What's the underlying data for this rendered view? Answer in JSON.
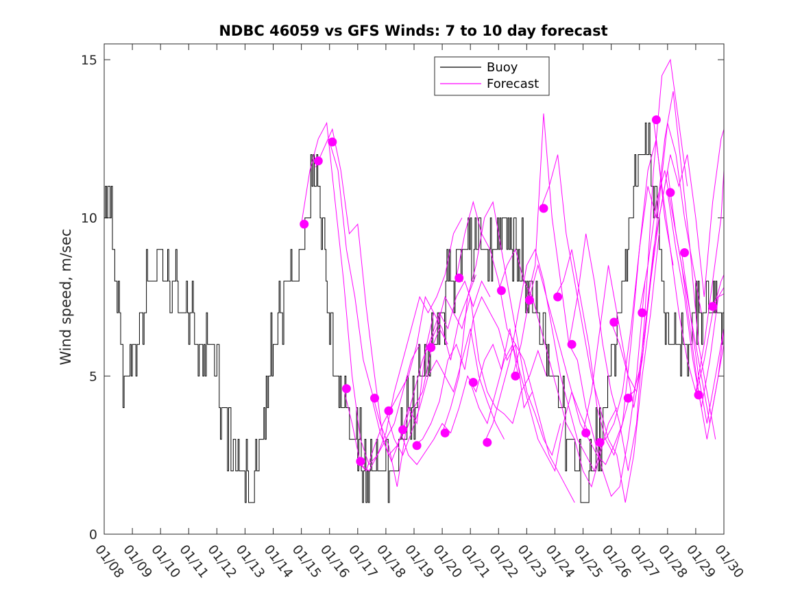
{
  "chart_data": {
    "type": "line",
    "title": "NDBC 46059 vs GFS Winds: 7 to 10 day forecast",
    "xlabel": "",
    "ylabel": "Wind speed, m/sec",
    "xlim": [
      0,
      22
    ],
    "ylim": [
      0,
      15.5
    ],
    "yticks": [
      0,
      5,
      10,
      15
    ],
    "xtick_labels": [
      "01/08",
      "01/09",
      "01/10",
      "01/11",
      "01/12",
      "01/13",
      "01/14",
      "01/15",
      "01/16",
      "01/17",
      "01/18",
      "01/19",
      "01/20",
      "01/21",
      "01/22",
      "01/23",
      "01/24",
      "01/25",
      "01/26",
      "01/27",
      "01/28",
      "01/29",
      "01/30"
    ],
    "legend": {
      "position": "top-center",
      "entries": [
        "Buoy",
        "Forecast"
      ]
    },
    "colors": {
      "buoy": "#000000",
      "forecast": "#ff00ff",
      "marker": "#ff00ff",
      "axes": "#262626"
    },
    "series": [
      {
        "name": "Buoy",
        "style": "step-hourly",
        "x": [
          0,
          0.15,
          0.3,
          0.5,
          0.7,
          0.9,
          1.1,
          1.3,
          1.6,
          1.9,
          2.2,
          2.5,
          2.8,
          3.1,
          3.5,
          3.8,
          4.0,
          4.2,
          4.5,
          4.8,
          5.0,
          5.2,
          5.4,
          5.6,
          5.8,
          6.0,
          6.2,
          6.5,
          6.8,
          7.0,
          7.2,
          7.4,
          7.6,
          7.8,
          8.0,
          8.2,
          8.4,
          8.6,
          8.8,
          9.0,
          9.2,
          9.5,
          9.8,
          10.0,
          10.3,
          10.6,
          10.9,
          11.2,
          11.5,
          11.8,
          12.0,
          12.3,
          12.6,
          12.9,
          13.2,
          13.5,
          13.8,
          14.1,
          14.4,
          14.7,
          15.0,
          15.3,
          15.6,
          15.9,
          16.2,
          16.5,
          16.8,
          17.0,
          17.3,
          17.6,
          17.9,
          18.1,
          18.4,
          18.7,
          19.0,
          19.3,
          19.6,
          19.9,
          20.1,
          20.4,
          20.7,
          21.0,
          21.3,
          21.6,
          21.9
        ],
        "y": [
          11,
          11,
          9,
          7,
          5,
          5,
          6,
          7,
          8,
          9,
          8,
          8,
          7,
          7,
          6,
          6,
          5,
          4,
          3,
          2,
          2,
          1,
          2,
          3,
          5,
          6,
          7,
          8,
          8,
          9,
          10,
          11,
          11,
          10,
          6,
          5,
          4,
          4,
          3,
          3,
          2,
          2,
          2,
          2,
          2,
          3,
          4,
          5,
          6,
          6,
          7,
          8,
          9,
          9,
          9,
          9,
          9,
          10,
          9,
          9,
          8,
          7,
          6,
          5,
          4,
          3,
          2,
          1,
          2,
          3,
          5,
          6,
          8,
          10,
          12,
          13,
          10,
          7,
          6,
          6,
          6,
          7,
          7,
          7,
          7
        ]
      },
      {
        "name": "Forecast",
        "x": [
          7.0,
          7.3,
          7.6,
          7.9,
          8.2,
          8.5,
          8.8,
          9.1,
          9.4,
          9.7,
          10.0,
          10.3,
          10.6,
          10.9,
          11.2
        ],
        "y": [
          9.8,
          11.5,
          12.5,
          13.0,
          10.5,
          8.0,
          5.0,
          3.0,
          2.2,
          2.5,
          3.0,
          3.5,
          4.5,
          5.5,
          6.0
        ]
      },
      {
        "name": "Forecast",
        "x": [
          7.5,
          7.8,
          8.1,
          8.4,
          8.7,
          9.0,
          9.3,
          9.6,
          9.9,
          10.2,
          10.5,
          10.8,
          11.1,
          11.4,
          11.7
        ],
        "y": [
          11.6,
          12.2,
          12.8,
          11.5,
          9.5,
          9.8,
          7.2,
          5.0,
          3.0,
          2.3,
          3.0,
          4.0,
          3.5,
          5.8,
          7.0
        ]
      },
      {
        "name": "Forecast",
        "x": [
          8.0,
          8.3,
          8.6,
          8.9,
          9.2,
          9.5,
          9.8,
          10.1,
          10.4,
          10.7,
          11.0,
          11.3,
          11.6,
          11.9,
          12.2
        ],
        "y": [
          12.4,
          11.5,
          9.0,
          7.5,
          5.5,
          4.5,
          3.5,
          2.8,
          1.5,
          3.2,
          4.0,
          4.5,
          5.8,
          6.5,
          6.0
        ]
      },
      {
        "name": "Forecast",
        "x": [
          8.5,
          8.8,
          9.1,
          9.4,
          9.7,
          10.0,
          10.3,
          10.6,
          10.9,
          11.2,
          11.5,
          11.8,
          12.1,
          12.4,
          12.7
        ],
        "y": [
          4.6,
          3.5,
          2.2,
          2.0,
          2.5,
          3.2,
          4.5,
          5.5,
          6.5,
          7.5,
          7.0,
          7.5,
          8.2,
          9.5,
          10.0
        ]
      },
      {
        "name": "Forecast",
        "x": [
          9.0,
          9.3,
          9.6,
          9.9,
          10.2,
          10.5,
          10.8,
          11.1,
          11.4,
          11.7,
          12.0,
          12.3,
          12.6,
          12.9,
          13.2
        ],
        "y": [
          2.3,
          2.0,
          2.8,
          3.5,
          4.0,
          4.5,
          5.0,
          6.0,
          7.5,
          7.0,
          6.5,
          5.5,
          6.8,
          7.5,
          8.2
        ]
      },
      {
        "name": "Forecast",
        "x": [
          9.5,
          9.8,
          10.1,
          10.4,
          10.7,
          11.0,
          11.3,
          11.6,
          11.9,
          12.2,
          12.5,
          12.8,
          13.1,
          13.4,
          13.7
        ],
        "y": [
          4.3,
          3.2,
          2.5,
          2.8,
          3.5,
          4.5,
          5.5,
          6.2,
          7.0,
          6.5,
          7.5,
          8.0,
          7.2,
          8.0,
          7.5
        ]
      },
      {
        "name": "Forecast",
        "x": [
          10.0,
          10.3,
          10.6,
          10.9,
          11.2,
          11.5,
          11.8,
          12.1,
          12.4,
          12.7,
          13.0,
          13.3,
          13.6,
          13.9,
          14.2
        ],
        "y": [
          3.9,
          3.0,
          2.5,
          3.2,
          4.0,
          5.0,
          5.5,
          5.0,
          4.5,
          5.5,
          6.5,
          5.0,
          4.2,
          3.5,
          3.0
        ]
      },
      {
        "name": "Forecast",
        "x": [
          10.5,
          10.8,
          11.1,
          11.4,
          11.7,
          12.0,
          12.3,
          12.6,
          12.9,
          13.2,
          13.5,
          13.8,
          14.1,
          14.4,
          14.7
        ],
        "y": [
          3.3,
          2.5,
          2.2,
          2.6,
          3.0,
          3.5,
          3.2,
          4.0,
          5.0,
          4.5,
          5.5,
          6.0,
          5.2,
          6.5,
          5.0
        ]
      },
      {
        "name": "Forecast",
        "x": [
          11.0,
          11.3,
          11.6,
          11.9,
          12.2,
          12.5,
          12.8,
          13.1,
          13.4,
          13.7,
          14.0,
          14.3,
          14.6,
          14.9,
          15.2
        ],
        "y": [
          2.8,
          3.0,
          3.5,
          4.2,
          5.5,
          6.0,
          5.2,
          6.8,
          7.5,
          7.0,
          6.5,
          5.5,
          6.0,
          4.0,
          4.5
        ]
      },
      {
        "name": "Forecast",
        "x": [
          11.5,
          11.8,
          12.1,
          12.4,
          12.7,
          13.0,
          13.3,
          13.6,
          13.9,
          14.2,
          14.5,
          14.8,
          15.1,
          15.4,
          15.7
        ],
        "y": [
          5.9,
          6.5,
          7.5,
          7.0,
          6.5,
          7.5,
          5.5,
          4.5,
          4.0,
          3.8,
          3.5,
          4.5,
          5.0,
          5.8,
          5.0
        ]
      },
      {
        "name": "Forecast",
        "x": [
          12.0,
          12.3,
          12.6,
          12.9,
          13.2,
          13.5,
          13.8,
          14.1,
          14.4,
          14.7,
          15.0,
          15.3,
          15.6,
          15.9,
          16.2
        ],
        "y": [
          3.2,
          4.0,
          5.0,
          7.5,
          8.5,
          10.0,
          10.5,
          9.0,
          7.5,
          6.0,
          4.5,
          3.8,
          3.0,
          2.5,
          3.5
        ]
      },
      {
        "name": "Forecast",
        "x": [
          12.5,
          12.8,
          13.1,
          13.4,
          13.7,
          14.0,
          14.3,
          14.6,
          14.9,
          15.2,
          15.5,
          15.8,
          16.1,
          16.4,
          16.7
        ],
        "y": [
          8.1,
          9.5,
          10.5,
          9.5,
          9.0,
          8.0,
          6.5,
          6.0,
          5.5,
          4.5,
          3.5,
          2.5,
          2.0,
          1.5,
          1.0
        ]
      },
      {
        "name": "Forecast",
        "x": [
          13.0,
          13.3,
          13.6,
          13.9,
          14.2,
          14.5,
          14.8,
          15.1,
          15.4,
          15.7,
          16.0,
          16.3,
          16.6,
          16.9,
          17.2
        ],
        "y": [
          4.8,
          4.0,
          3.5,
          4.5,
          5.5,
          6.0,
          5.0,
          4.0,
          3.0,
          2.5,
          2.0,
          3.5,
          4.5,
          3.8,
          3.2
        ]
      },
      {
        "name": "Forecast",
        "x": [
          13.5,
          13.8,
          14.1,
          14.4,
          14.7,
          15.0,
          15.3,
          15.6,
          15.9,
          16.2,
          16.5,
          16.8,
          17.1,
          17.4,
          17.7
        ],
        "y": [
          2.9,
          3.5,
          4.5,
          5.5,
          7.0,
          8.5,
          9.0,
          8.0,
          6.5,
          5.0,
          4.0,
          3.0,
          2.5,
          2.0,
          3.0
        ]
      },
      {
        "name": "Forecast",
        "x": [
          14.0,
          14.3,
          14.6,
          14.9,
          15.2,
          15.5,
          15.8,
          16.1,
          16.4,
          16.7,
          17.0,
          17.3,
          17.6,
          17.9,
          18.2
        ],
        "y": [
          7.7,
          8.5,
          9.0,
          8.0,
          7.5,
          6.5,
          5.5,
          4.5,
          3.5,
          3.0,
          2.0,
          1.5,
          2.5,
          3.5,
          4.0
        ]
      },
      {
        "name": "Forecast",
        "x": [
          14.5,
          14.8,
          15.1,
          15.4,
          15.7,
          16.0,
          16.3,
          16.6,
          16.9,
          17.2,
          17.5,
          17.8,
          18.1,
          18.4,
          18.7
        ],
        "y": [
          5.0,
          6.0,
          7.5,
          8.5,
          7.5,
          6.5,
          5.5,
          4.5,
          3.5,
          3.0,
          2.5,
          2.2,
          2.8,
          3.5,
          4.5
        ]
      },
      {
        "name": "Forecast",
        "x": [
          15.0,
          15.3,
          15.6,
          15.9,
          16.2,
          16.5,
          16.8,
          17.1,
          17.4,
          17.7,
          18.0,
          18.3,
          18.6,
          18.9,
          19.2
        ],
        "y": [
          7.4,
          8.5,
          13.3,
          10.0,
          8.0,
          6.0,
          5.5,
          4.0,
          3.0,
          2.0,
          1.2,
          1.5,
          3.0,
          5.0,
          8.0
        ]
      },
      {
        "name": "Forecast",
        "x": [
          15.5,
          15.8,
          16.1,
          16.4,
          16.7,
          17.0,
          17.3,
          17.6,
          17.9,
          18.2,
          18.5,
          18.8,
          19.1,
          19.4,
          19.7
        ],
        "y": [
          10.3,
          11.0,
          12.0,
          9.5,
          8.0,
          6.5,
          5.0,
          4.0,
          3.0,
          2.5,
          1.0,
          2.5,
          5.0,
          7.0,
          9.5
        ]
      },
      {
        "name": "Forecast",
        "x": [
          16.0,
          16.3,
          16.6,
          16.9,
          17.2,
          17.5,
          17.8,
          18.1,
          18.4,
          18.7,
          19.0,
          19.3,
          19.6,
          19.9,
          20.2
        ],
        "y": [
          7.5,
          8.0,
          9.0,
          7.5,
          6.0,
          4.0,
          3.0,
          2.5,
          3.5,
          6.0,
          9.0,
          11.5,
          12.5,
          10.0,
          8.5
        ]
      },
      {
        "name": "Forecast",
        "x": [
          16.5,
          16.8,
          17.1,
          17.4,
          17.7,
          18.0,
          18.3,
          18.6,
          18.9,
          19.2,
          19.5,
          19.8,
          20.1,
          20.4,
          20.7
        ],
        "y": [
          6.0,
          7.5,
          9.5,
          8.0,
          6.0,
          4.5,
          3.5,
          2.0,
          3.5,
          7.0,
          11.5,
          14.5,
          15.0,
          13.0,
          11.0
        ]
      },
      {
        "name": "Forecast",
        "x": [
          17.0,
          17.3,
          17.6,
          17.9,
          18.2,
          18.5,
          18.8,
          19.1,
          19.4,
          19.7,
          20.0,
          20.3,
          20.6,
          20.9,
          21.2
        ],
        "y": [
          3.2,
          4.5,
          6.5,
          8.5,
          7.0,
          5.5,
          4.0,
          5.5,
          8.0,
          10.5,
          13.0,
          12.0,
          10.0,
          8.5,
          7.0
        ]
      },
      {
        "name": "Forecast",
        "x": [
          17.5,
          17.8,
          18.1,
          18.4,
          18.7,
          19.0,
          19.3,
          19.6,
          19.9,
          20.2,
          20.5,
          20.8,
          21.1,
          21.4,
          21.7
        ],
        "y": [
          2.9,
          3.0,
          3.5,
          4.5,
          6.5,
          9.0,
          11.0,
          10.0,
          12.5,
          14.0,
          11.5,
          9.0,
          6.0,
          4.5,
          3.0
        ]
      },
      {
        "name": "Forecast",
        "x": [
          18.0,
          18.3,
          18.6,
          18.9,
          19.2,
          19.5,
          19.8,
          20.1,
          20.4,
          20.7,
          21.0,
          21.3,
          21.6,
          21.9,
          22.0
        ],
        "y": [
          6.7,
          6.0,
          5.0,
          4.5,
          6.5,
          9.0,
          10.5,
          12.0,
          11.0,
          12.0,
          10.0,
          7.5,
          10.5,
          12.5,
          12.8
        ]
      },
      {
        "name": "Forecast",
        "x": [
          18.5,
          18.8,
          19.1,
          19.4,
          19.7,
          20.0,
          20.3,
          20.6,
          20.9,
          21.2,
          21.5,
          21.8,
          22.0
        ],
        "y": [
          4.3,
          4.5,
          5.5,
          8.0,
          10.0,
          11.5,
          9.5,
          8.0,
          6.5,
          5.0,
          3.5,
          5.0,
          6.5
        ]
      },
      {
        "name": "Forecast",
        "x": [
          19.0,
          19.3,
          19.6,
          19.9,
          20.2,
          20.5,
          20.8,
          21.1,
          21.4,
          21.7,
          22.0
        ],
        "y": [
          7.0,
          8.5,
          10.5,
          11.5,
          10.0,
          8.5,
          6.5,
          4.5,
          3.0,
          4.5,
          6.0
        ]
      },
      {
        "name": "Forecast",
        "x": [
          19.5,
          19.8,
          20.1,
          20.4,
          20.7,
          21.0,
          21.3,
          21.6,
          21.9,
          22.0
        ],
        "y": [
          13.1,
          11.0,
          9.0,
          7.0,
          5.5,
          4.5,
          6.0,
          8.0,
          10.0,
          11.5
        ]
      },
      {
        "name": "Forecast",
        "x": [
          20.0,
          20.3,
          20.6,
          20.9,
          21.2,
          21.5,
          21.8,
          22.0
        ],
        "y": [
          10.8,
          9.0,
          7.5,
          5.5,
          4.0,
          5.5,
          7.5,
          7.8
        ]
      },
      {
        "name": "Forecast",
        "x": [
          20.5,
          20.8,
          21.1,
          21.4,
          21.7,
          22.0
        ],
        "y": [
          8.9,
          7.0,
          5.0,
          3.5,
          5.0,
          6.5
        ]
      },
      {
        "name": "Forecast",
        "x": [
          21.0,
          21.3,
          21.6,
          21.9,
          22.0
        ],
        "y": [
          4.4,
          5.5,
          7.0,
          8.0,
          8.2
        ]
      },
      {
        "name": "Forecast",
        "x": [
          21.5,
          21.8,
          22.0
        ],
        "y": [
          7.2,
          7.5,
          7.6
        ]
      }
    ],
    "markers": {
      "name": "Forecast start",
      "x": [
        7.1,
        7.6,
        8.1,
        8.6,
        9.1,
        9.6,
        10.1,
        10.6,
        11.1,
        11.6,
        12.1,
        12.6,
        13.1,
        13.6,
        14.1,
        14.6,
        15.1,
        15.6,
        16.1,
        16.6,
        17.1,
        17.6,
        18.1,
        18.6,
        19.1,
        19.6,
        20.1,
        20.6,
        21.1,
        21.6
      ],
      "y": [
        9.8,
        11.8,
        12.4,
        4.6,
        2.3,
        4.3,
        3.9,
        3.3,
        2.8,
        5.9,
        3.2,
        8.1,
        4.8,
        2.9,
        7.7,
        5.0,
        7.4,
        10.3,
        7.5,
        6.0,
        3.2,
        2.9,
        6.7,
        4.3,
        7.0,
        13.1,
        10.8,
        8.9,
        4.4,
        7.2
      ]
    }
  }
}
